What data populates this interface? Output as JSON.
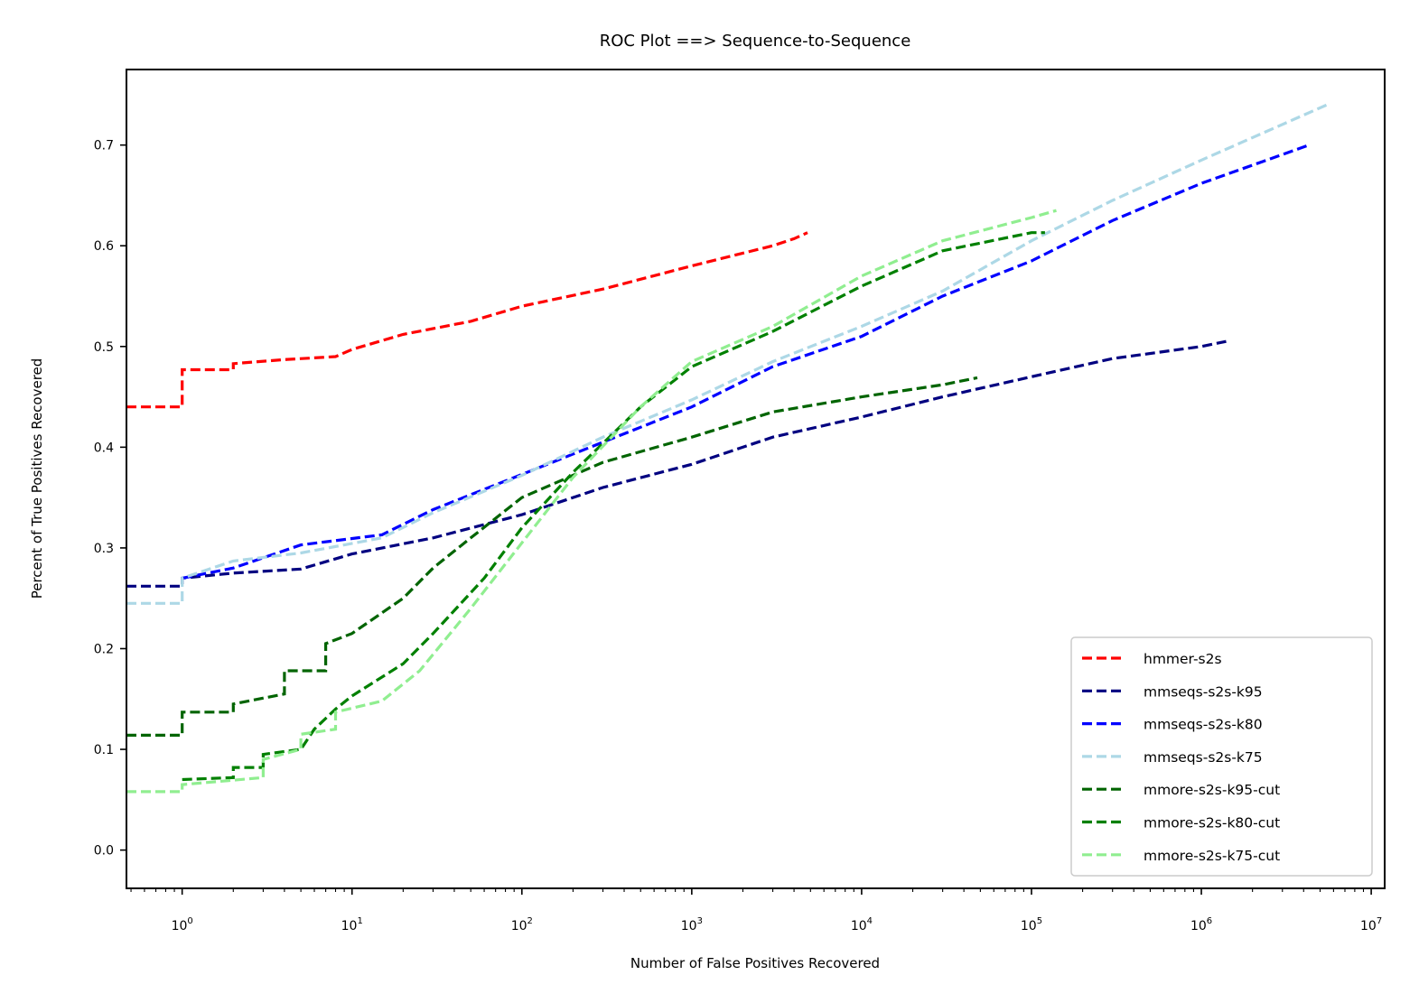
{
  "chart_data": {
    "type": "line",
    "title": "ROC Plot ==> Sequence-to-Sequence",
    "xlabel": "Number of False Positives Recovered",
    "ylabel": "Percent of True Positives Recovered",
    "xscale": "log",
    "xlim": [
      0.47,
      12000000
    ],
    "ylim": [
      -0.038,
      0.775
    ],
    "x_ticks": [
      {
        "base": "10",
        "exp": "0",
        "value": 1
      },
      {
        "base": "10",
        "exp": "1",
        "value": 10
      },
      {
        "base": "10",
        "exp": "2",
        "value": 100
      },
      {
        "base": "10",
        "exp": "3",
        "value": 1000
      },
      {
        "base": "10",
        "exp": "4",
        "value": 10000
      },
      {
        "base": "10",
        "exp": "5",
        "value": 100000
      },
      {
        "base": "10",
        "exp": "6",
        "value": 1000000
      },
      {
        "base": "10",
        "exp": "7",
        "value": 10000000
      }
    ],
    "y_ticks": [
      {
        "label": "0.0",
        "value": 0.0
      },
      {
        "label": "0.1",
        "value": 0.1
      },
      {
        "label": "0.2",
        "value": 0.2
      },
      {
        "label": "0.3",
        "value": 0.3
      },
      {
        "label": "0.4",
        "value": 0.4
      },
      {
        "label": "0.5",
        "value": 0.5
      },
      {
        "label": "0.6",
        "value": 0.6
      },
      {
        "label": "0.7",
        "value": 0.7
      }
    ],
    "legend_position": "bottom-right",
    "grid": false,
    "line_style": "dashed",
    "series": [
      {
        "name": "hmmer-s2s",
        "color": "#ff0000",
        "points": [
          [
            0.47,
            0.44
          ],
          [
            1,
            0.44
          ],
          [
            1,
            0.477
          ],
          [
            2,
            0.477
          ],
          [
            2,
            0.483
          ],
          [
            4,
            0.487
          ],
          [
            8,
            0.49
          ],
          [
            10,
            0.497
          ],
          [
            20,
            0.512
          ],
          [
            50,
            0.525
          ],
          [
            100,
            0.54
          ],
          [
            300,
            0.557
          ],
          [
            1000,
            0.58
          ],
          [
            3000,
            0.6
          ],
          [
            4000,
            0.607
          ],
          [
            4800,
            0.613
          ]
        ]
      },
      {
        "name": "mmseqs-s2s-k95",
        "color": "#000080",
        "points": [
          [
            0.47,
            0.262
          ],
          [
            1,
            0.262
          ],
          [
            1,
            0.27
          ],
          [
            2,
            0.275
          ],
          [
            5,
            0.279
          ],
          [
            10,
            0.294
          ],
          [
            30,
            0.31
          ],
          [
            100,
            0.333
          ],
          [
            300,
            0.36
          ],
          [
            1000,
            0.383
          ],
          [
            3000,
            0.41
          ],
          [
            10000,
            0.43
          ],
          [
            30000,
            0.45
          ],
          [
            100000,
            0.47
          ],
          [
            300000,
            0.488
          ],
          [
            1000000,
            0.5
          ],
          [
            1400000,
            0.505
          ]
        ]
      },
      {
        "name": "mmseqs-s2s-k80",
        "color": "#0000ff",
        "points": [
          [
            1,
            0.27
          ],
          [
            2,
            0.28
          ],
          [
            5,
            0.303
          ],
          [
            15,
            0.313
          ],
          [
            30,
            0.338
          ],
          [
            100,
            0.373
          ],
          [
            300,
            0.405
          ],
          [
            1000,
            0.44
          ],
          [
            3000,
            0.48
          ],
          [
            10000,
            0.51
          ],
          [
            30000,
            0.55
          ],
          [
            100000,
            0.585
          ],
          [
            300000,
            0.625
          ],
          [
            1000000,
            0.662
          ],
          [
            4300000,
            0.7
          ]
        ]
      },
      {
        "name": "mmseqs-s2s-k75",
        "color": "#add8e6",
        "points": [
          [
            0.47,
            0.245
          ],
          [
            1,
            0.245
          ],
          [
            1,
            0.27
          ],
          [
            2,
            0.287
          ],
          [
            5,
            0.295
          ],
          [
            15,
            0.31
          ],
          [
            30,
            0.335
          ],
          [
            100,
            0.372
          ],
          [
            300,
            0.41
          ],
          [
            1000,
            0.447
          ],
          [
            3000,
            0.485
          ],
          [
            10000,
            0.52
          ],
          [
            30000,
            0.555
          ],
          [
            100000,
            0.605
          ],
          [
            300000,
            0.645
          ],
          [
            1000000,
            0.685
          ],
          [
            5500000,
            0.74
          ]
        ]
      },
      {
        "name": "mmore-s2s-k95-cut",
        "color": "#006400",
        "points": [
          [
            0.47,
            0.114
          ],
          [
            1,
            0.114
          ],
          [
            1,
            0.137
          ],
          [
            2,
            0.137
          ],
          [
            2,
            0.145
          ],
          [
            4,
            0.155
          ],
          [
            4,
            0.178
          ],
          [
            7,
            0.178
          ],
          [
            7,
            0.205
          ],
          [
            10,
            0.215
          ],
          [
            20,
            0.25
          ],
          [
            30,
            0.28
          ],
          [
            50,
            0.31
          ],
          [
            100,
            0.35
          ],
          [
            300,
            0.385
          ],
          [
            1000,
            0.41
          ],
          [
            3000,
            0.435
          ],
          [
            10000,
            0.45
          ],
          [
            30000,
            0.462
          ],
          [
            48000,
            0.469
          ]
        ]
      },
      {
        "name": "mmore-s2s-k80-cut",
        "color": "#008000",
        "points": [
          [
            1,
            0.07
          ],
          [
            2,
            0.072
          ],
          [
            2,
            0.082
          ],
          [
            3,
            0.082
          ],
          [
            3,
            0.095
          ],
          [
            5,
            0.1
          ],
          [
            6,
            0.12
          ],
          [
            8,
            0.14
          ],
          [
            10,
            0.153
          ],
          [
            20,
            0.185
          ],
          [
            30,
            0.215
          ],
          [
            60,
            0.27
          ],
          [
            100,
            0.32
          ],
          [
            200,
            0.375
          ],
          [
            500,
            0.44
          ],
          [
            1000,
            0.48
          ],
          [
            3000,
            0.515
          ],
          [
            10000,
            0.56
          ],
          [
            30000,
            0.595
          ],
          [
            100000,
            0.613
          ],
          [
            120000,
            0.613
          ]
        ]
      },
      {
        "name": "mmore-s2s-k75-cut",
        "color": "#90ee90",
        "points": [
          [
            0.47,
            0.058
          ],
          [
            1,
            0.058
          ],
          [
            1,
            0.065
          ],
          [
            3,
            0.072
          ],
          [
            3,
            0.09
          ],
          [
            5,
            0.1
          ],
          [
            5,
            0.115
          ],
          [
            8,
            0.12
          ],
          [
            8,
            0.137
          ],
          [
            15,
            0.148
          ],
          [
            25,
            0.178
          ],
          [
            50,
            0.24
          ],
          [
            100,
            0.305
          ],
          [
            200,
            0.37
          ],
          [
            500,
            0.44
          ],
          [
            1000,
            0.485
          ],
          [
            3000,
            0.52
          ],
          [
            10000,
            0.57
          ],
          [
            30000,
            0.605
          ],
          [
            100000,
            0.628
          ],
          [
            140000,
            0.635
          ]
        ]
      }
    ]
  }
}
